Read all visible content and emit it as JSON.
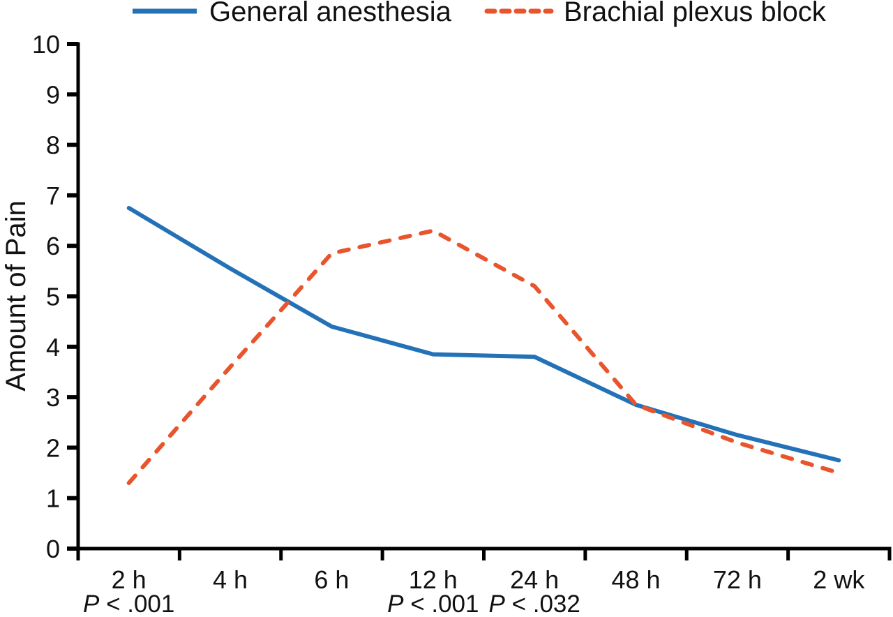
{
  "figure": {
    "background": "#ffffff",
    "axis_color": "#000000",
    "text_color": "#111111"
  },
  "chart_data": {
    "type": "line",
    "title": "",
    "xlabel": "",
    "ylabel": "Amount of Pain",
    "categories": [
      "2 h",
      "4 h",
      "6 h",
      "12 h",
      "24 h",
      "48 h",
      "72 h",
      "2 wk"
    ],
    "series": [
      {
        "name": "General anesthesia",
        "color": "#2371b7",
        "dash": "solid",
        "values": [
          6.75,
          5.55,
          4.4,
          3.85,
          3.8,
          2.85,
          2.25,
          1.75
        ]
      },
      {
        "name": "Brachial plexus block",
        "color": "#e8552d",
        "dash": "dashed",
        "values": [
          1.3,
          3.6,
          5.85,
          6.3,
          5.2,
          2.85,
          2.1,
          1.5
        ]
      }
    ],
    "ylim": [
      0,
      10
    ],
    "yticks": [
      0,
      1,
      2,
      3,
      4,
      5,
      6,
      7,
      8,
      9,
      10
    ],
    "grid": false,
    "legend_position": "top",
    "annotations": [
      {
        "category": "2 h",
        "label": "P < .001"
      },
      {
        "category": "12 h",
        "label": "P < .001"
      },
      {
        "category": "24 h",
        "label": "P < .032"
      }
    ]
  }
}
